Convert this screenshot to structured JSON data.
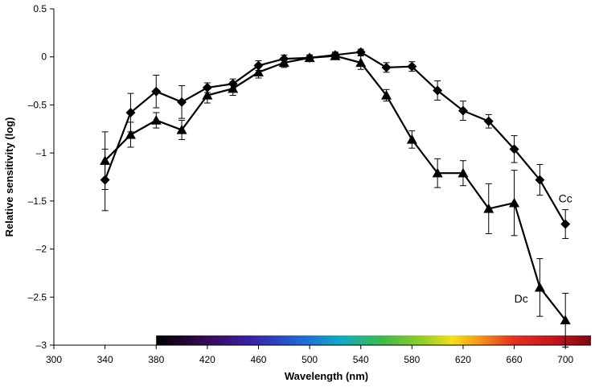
{
  "chart_data": {
    "type": "line",
    "title": "",
    "xlabel": "Wavelength (nm)",
    "ylabel": "Relative sensitivity (log)",
    "xlim": [
      300,
      720
    ],
    "ylim": [
      -3,
      0.5
    ],
    "xticks": [
      300,
      340,
      380,
      420,
      460,
      500,
      540,
      580,
      620,
      660,
      700
    ],
    "xtick_labels": [
      "300",
      "340",
      "380",
      "420",
      "460",
      "500",
      "540",
      "580",
      "620",
      "660",
      "700"
    ],
    "yticks": [
      0.5,
      0,
      -0.5,
      -1,
      -1.5,
      -2,
      -2.5,
      -3
    ],
    "ytick_labels": [
      "0.5",
      "0",
      "–0.5",
      "–1",
      "–1.5",
      "–2",
      "–2.5",
      "–3"
    ],
    "grid": false,
    "spectrum_bar": {
      "x_range": [
        380,
        720
      ]
    },
    "series": [
      {
        "name": "Cc",
        "marker": "diamond",
        "color": "#000000",
        "x": [
          340,
          360,
          380,
          400,
          420,
          440,
          460,
          480,
          500,
          520,
          540,
          560,
          580,
          600,
          620,
          640,
          660,
          680,
          700
        ],
        "y": [
          -1.28,
          -0.58,
          -0.36,
          -0.47,
          -0.32,
          -0.28,
          -0.09,
          -0.02,
          -0.01,
          0.02,
          0.05,
          -0.11,
          -0.1,
          -0.35,
          -0.56,
          -0.67,
          -0.96,
          -1.28,
          -1.74
        ],
        "err": [
          0.32,
          0.2,
          0.17,
          0.17,
          0.05,
          0.05,
          0.05,
          0.04,
          0.03,
          0.03,
          0.03,
          0.05,
          0.05,
          0.1,
          0.1,
          0.07,
          0.14,
          0.16,
          0.15
        ]
      },
      {
        "name": "Dc",
        "marker": "triangle",
        "color": "#000000",
        "x": [
          340,
          360,
          380,
          400,
          420,
          440,
          460,
          480,
          500,
          520,
          540,
          560,
          580,
          600,
          620,
          640,
          660,
          680,
          700
        ],
        "y": [
          -1.08,
          -0.81,
          -0.66,
          -0.76,
          -0.4,
          -0.33,
          -0.16,
          -0.06,
          -0.01,
          0.01,
          -0.06,
          -0.4,
          -0.86,
          -1.21,
          -1.21,
          -1.58,
          -1.52,
          -2.4,
          -2.74
        ],
        "err": [
          0.3,
          0.13,
          0.08,
          0.1,
          0.08,
          0.07,
          0.06,
          0.05,
          0.03,
          0.03,
          0.07,
          0.06,
          0.09,
          0.15,
          0.13,
          0.26,
          0.34,
          0.3,
          0.28
        ]
      }
    ],
    "annotations": [
      {
        "text": "Cc",
        "series": "Cc"
      },
      {
        "text": "Dc",
        "series": "Dc"
      }
    ]
  }
}
